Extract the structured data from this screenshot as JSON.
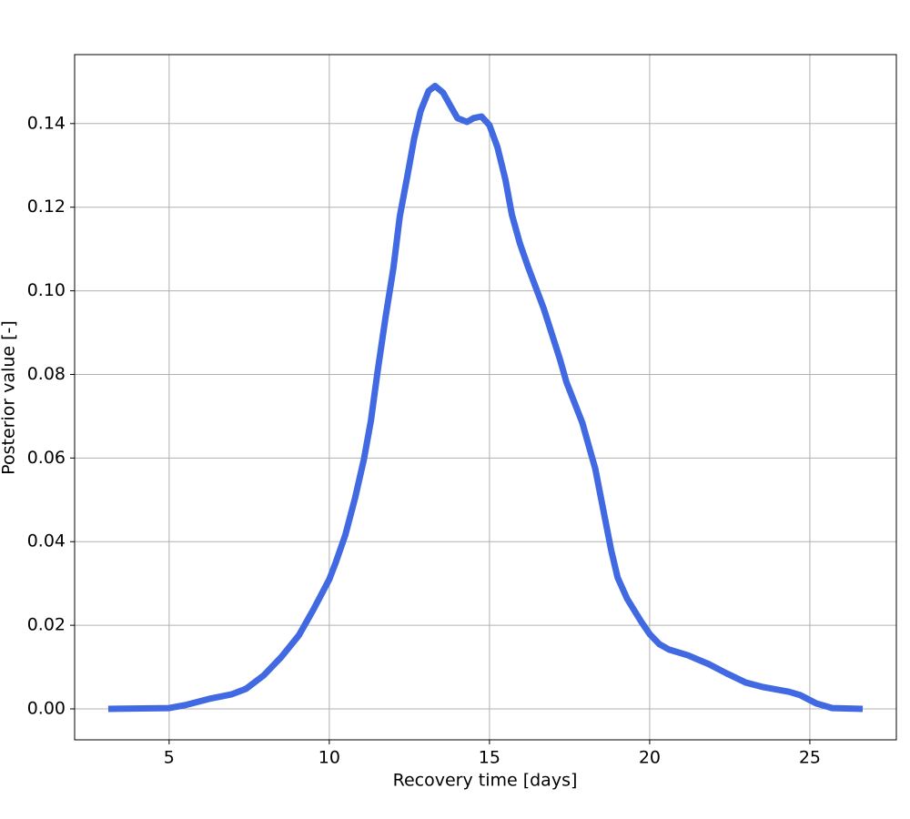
{
  "chart_data": {
    "type": "line",
    "xlabel": "Recovery time [days]",
    "ylabel": "Posterior value [-]",
    "color": "#4169e1",
    "grid": true,
    "x": [
      3.1,
      5,
      5.5,
      6.25,
      6.96,
      7.4,
      7.95,
      8.5,
      9.05,
      9.5,
      10,
      10.2,
      10.5,
      10.8,
      11.08,
      11.3,
      11.5,
      11.75,
      12,
      12.2,
      12.45,
      12.65,
      12.85,
      13.1,
      13.3,
      13.55,
      13.8,
      14.0,
      14.3,
      14.5,
      14.75,
      15.0,
      15.25,
      15.5,
      15.7,
      15.95,
      16.2,
      16.7,
      17.2,
      17.4,
      17.9,
      18.1,
      18.3,
      18.55,
      18.8,
      19.0,
      19.3,
      19.75,
      20.0,
      20.3,
      20.6,
      21.2,
      21.85,
      22.4,
      23.0,
      23.55,
      24.35,
      24.7,
      25.2,
      25.7,
      26.65
    ],
    "values": [
      0,
      0.0002,
      0.0009,
      0.0024,
      0.0035,
      0.0048,
      0.008,
      0.0124,
      0.0176,
      0.0237,
      0.031,
      0.035,
      0.0416,
      0.0503,
      0.0597,
      0.069,
      0.0803,
      0.0934,
      0.1054,
      0.1178,
      0.128,
      0.1365,
      0.143,
      0.1478,
      0.149,
      0.1474,
      0.144,
      0.1413,
      0.1404,
      0.1413,
      0.1417,
      0.1396,
      0.1343,
      0.1265,
      0.1182,
      0.1113,
      0.1058,
      0.0956,
      0.0836,
      0.0782,
      0.0684,
      0.0629,
      0.0575,
      0.0477,
      0.0379,
      0.0314,
      0.0263,
      0.0207,
      0.0179,
      0.0155,
      0.0142,
      0.0128,
      0.0107,
      0.0085,
      0.0063,
      0.0052,
      0.0041,
      0.0033,
      0.0013,
      0.0002,
      0
    ],
    "xlim": [
      2.05,
      27.7
    ],
    "ylim": [
      -0.0074,
      0.1565
    ],
    "xticks": [
      5,
      10,
      15,
      20,
      25
    ],
    "yticks": [
      {
        "value": 0,
        "label": "0.00"
      },
      0.02,
      0.04,
      0.06,
      0.08,
      {
        "value": 0.1,
        "label": "0.10"
      },
      0.12,
      0.14
    ]
  }
}
